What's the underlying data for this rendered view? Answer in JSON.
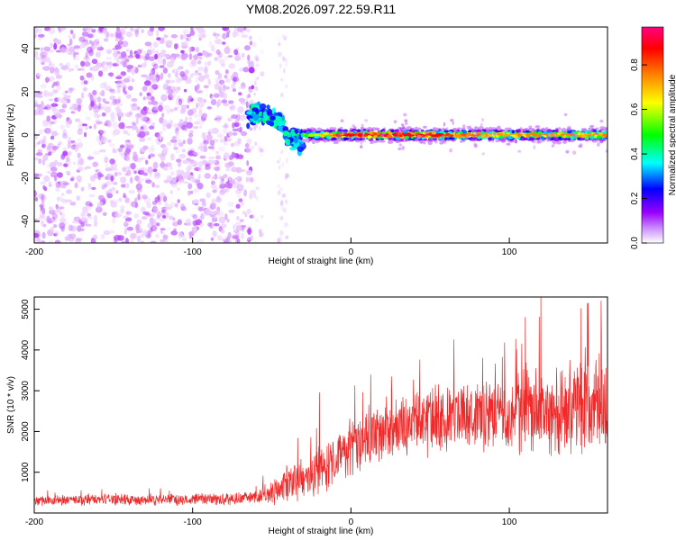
{
  "title": "YM08.2026.097.22.59.R11",
  "colors": {
    "snr_line": "#ee2a2a",
    "frame": "#000000",
    "grid_text": "#000000"
  },
  "chart_data": [
    {
      "type": "heatmap",
      "name": "spectrogram",
      "xlabel": "Height of straight line (km)",
      "ylabel": "Frequency (Hz)",
      "xlim": [
        -200,
        162
      ],
      "ylim": [
        -50,
        50
      ],
      "xticks": [
        -200,
        -100,
        0,
        100
      ],
      "yticks": [
        -40,
        -20,
        0,
        20,
        40
      ],
      "colorbar": {
        "label": "Normalized spectral amplitude",
        "range": [
          0,
          0.97
        ],
        "ticks": [
          0,
          0.2,
          0.4,
          0.6,
          0.8
        ],
        "tick_labels": [
          "0.0",
          "0.2",
          "0.4",
          "0.6",
          "0.8"
        ],
        "colormap": [
          "#ffffff",
          "#9b00ff",
          "#0000ff",
          "#00ffff",
          "#00ff00",
          "#ffff00",
          "#ff8000",
          "#ff0000",
          "#ff0080"
        ]
      },
      "regions": [
        {
          "description": "broadband noise",
          "x_range": [
            -200,
            -62
          ],
          "freq_range": [
            -50,
            50
          ],
          "amplitude_range": [
            0.02,
            0.1
          ]
        },
        {
          "description": "sparse noise",
          "x_range": [
            -62,
            -40
          ],
          "freq_range": [
            -50,
            50
          ],
          "amplitude_range": [
            0.01,
            0.04
          ]
        },
        {
          "description": "signal onset",
          "x_range": [
            -65,
            -30
          ],
          "freq_track": [
            [
              -65,
              9
            ],
            [
              -55,
              10
            ],
            [
              -48,
              8
            ],
            [
              -42,
              3
            ],
            [
              -38,
              -2
            ],
            [
              -32,
              -3
            ]
          ],
          "amplitude_range": [
            0.2,
            0.45
          ]
        },
        {
          "description": "tone at 0 Hz",
          "x_range": [
            -30,
            162
          ],
          "freq_center": 0,
          "amplitude_range": [
            0.4,
            0.95
          ]
        }
      ]
    },
    {
      "type": "line",
      "name": "snr",
      "xlabel": "Height of straight line (km)",
      "ylabel": "SNR (10 * v/v)",
      "xlim": [
        -200,
        162
      ],
      "ylim": [
        0,
        5300
      ],
      "xticks": [
        -200,
        -100,
        0,
        100
      ],
      "yticks": [
        1000,
        2000,
        3000,
        4000,
        5000
      ],
      "trend": {
        "x": [
          -200,
          -160,
          -120,
          -80,
          -60,
          -50,
          -40,
          -30,
          -20,
          -10,
          0,
          10,
          20,
          40,
          60,
          80,
          100,
          120,
          140,
          162
        ],
        "mean": [
          300,
          330,
          330,
          350,
          380,
          520,
          700,
          800,
          1000,
          1300,
          1550,
          1800,
          2000,
          2200,
          2300,
          2400,
          2450,
          2550,
          2650,
          2700
        ],
        "spread": [
          150,
          160,
          160,
          160,
          200,
          350,
          500,
          650,
          700,
          800,
          850,
          900,
          900,
          950,
          1000,
          1050,
          1150,
          1300,
          1450,
          1600
        ]
      },
      "peaks": [
        {
          "x": 120,
          "y": 5300
        },
        {
          "x": 158,
          "y": 5200
        },
        {
          "x": 110,
          "y": 4800
        },
        {
          "x": 65,
          "y": 4250
        },
        {
          "x": -20,
          "y": 2950
        }
      ]
    }
  ]
}
